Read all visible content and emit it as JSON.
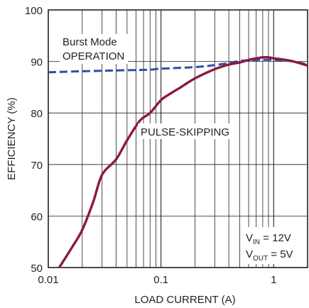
{
  "chart_data": {
    "type": "line",
    "xlabel": "LOAD CURRENT (A)",
    "ylabel": "EFFICIENCY (%)",
    "x_scale": "log",
    "xlim": [
      0.01,
      2
    ],
    "ylim": [
      50,
      100
    ],
    "grid": true,
    "x_tick_labels": [
      "0.01",
      "0.1",
      "1"
    ],
    "y_tick_labels": [
      "50",
      "60",
      "70",
      "80",
      "90",
      "100"
    ],
    "x_ticks": [
      0.01,
      0.1,
      1
    ],
    "y_ticks": [
      50,
      60,
      70,
      80,
      90,
      100
    ],
    "series": [
      {
        "name": "PULSE-SKIPPING",
        "color": "#8b1a3c",
        "style": "solid",
        "x": [
          0.0125,
          0.016,
          0.02,
          0.025,
          0.03,
          0.04,
          0.05,
          0.065,
          0.08,
          0.1,
          0.12,
          0.15,
          0.2,
          0.3,
          0.4,
          0.5,
          0.6,
          0.7,
          0.8,
          0.9,
          1.0,
          1.2,
          1.5,
          2.0
        ],
        "y": [
          50.0,
          53.7,
          57.3,
          62.7,
          68.0,
          71.0,
          74.7,
          78.5,
          80.0,
          82.5,
          83.7,
          85.0,
          86.7,
          88.5,
          89.4,
          89.8,
          90.3,
          90.6,
          90.8,
          90.8,
          90.6,
          90.4,
          90.0,
          89.2
        ]
      },
      {
        "name": "Burst Mode OPERATION",
        "color": "#2e4fa8",
        "style": "dashed",
        "x": [
          0.01,
          0.02,
          0.05,
          0.08,
          0.1,
          0.2,
          0.3,
          0.4,
          0.5,
          0.7,
          1.0,
          1.5,
          2.0
        ],
        "y": [
          87.9,
          88.1,
          88.3,
          88.4,
          88.6,
          88.9,
          89.3,
          89.7,
          90.1,
          90.3,
          90.3,
          90.0,
          89.4
        ]
      }
    ],
    "annotations": {
      "burst_line1": "Burst Mode",
      "burst_line2": "OPERATION",
      "pulse": "PULSE-SKIPPING",
      "vin_main": "V",
      "vin_sub": "IN",
      "vin_value": " = 12V",
      "vout_main": "V",
      "vout_sub": "OUT",
      "vout_value": " = 5V"
    }
  }
}
